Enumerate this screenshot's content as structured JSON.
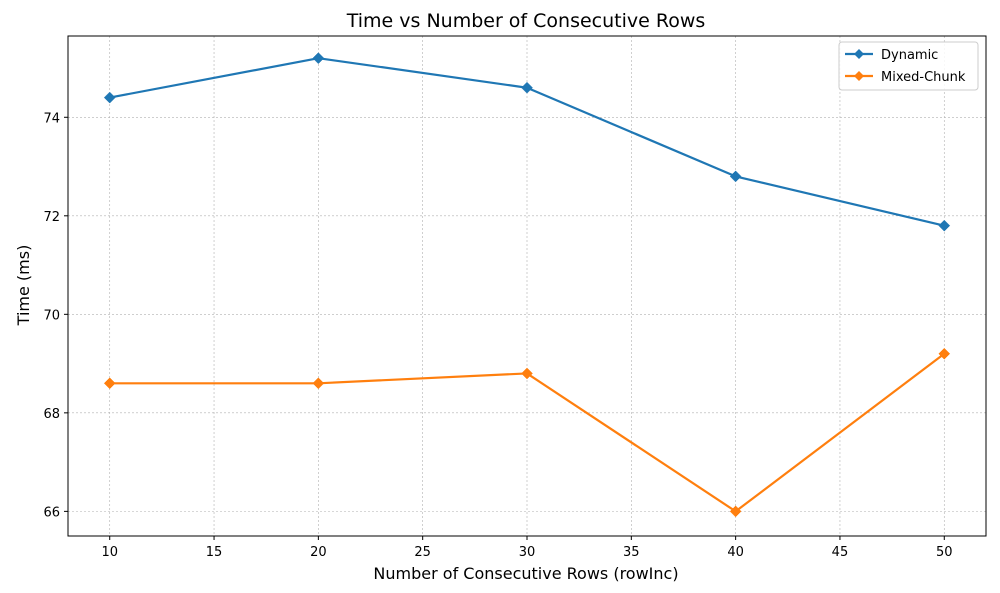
{
  "chart_data": {
    "type": "line",
    "title": "Time vs Number of Consecutive Rows",
    "xlabel": "Number of Consecutive Rows (rowInc)",
    "ylabel": "Time (ms)",
    "x": [
      10,
      20,
      30,
      40,
      50
    ],
    "xlim": [
      8,
      52
    ],
    "ylim": [
      65.5,
      75.65
    ],
    "xticks": [
      10,
      15,
      20,
      25,
      30,
      35,
      40,
      45,
      50
    ],
    "yticks": [
      66,
      68,
      70,
      72,
      74
    ],
    "grid": true,
    "legend_position": "top-right",
    "series": [
      {
        "name": "Dynamic",
        "values": [
          74.4,
          75.2,
          74.6,
          72.8,
          71.8
        ],
        "color": "#1f77b4",
        "marker": "diamond"
      },
      {
        "name": "Mixed-Chunk",
        "values": [
          68.6,
          68.6,
          68.8,
          66.0,
          69.2
        ],
        "color": "#ff7f0e",
        "marker": "diamond"
      }
    ]
  }
}
